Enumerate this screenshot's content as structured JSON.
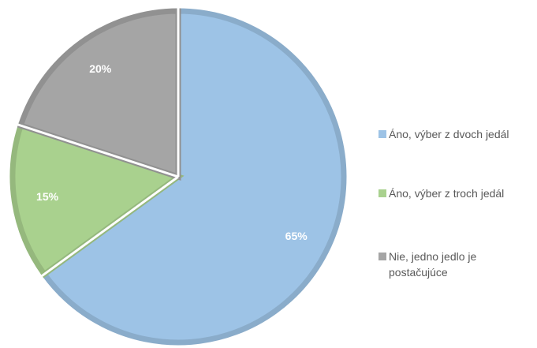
{
  "chart_data": {
    "type": "pie",
    "categories": [
      "Áno, výber z dvoch jedál",
      "Áno, výber z troch jedál",
      "Nie, jedno jedlo je postačujúce"
    ],
    "values": [
      65,
      15,
      20
    ],
    "value_labels": [
      "65%",
      "15%",
      "20%"
    ],
    "colors": [
      "#9dc3e6",
      "#a9d18e",
      "#a5a5a5"
    ],
    "legend": "right"
  }
}
